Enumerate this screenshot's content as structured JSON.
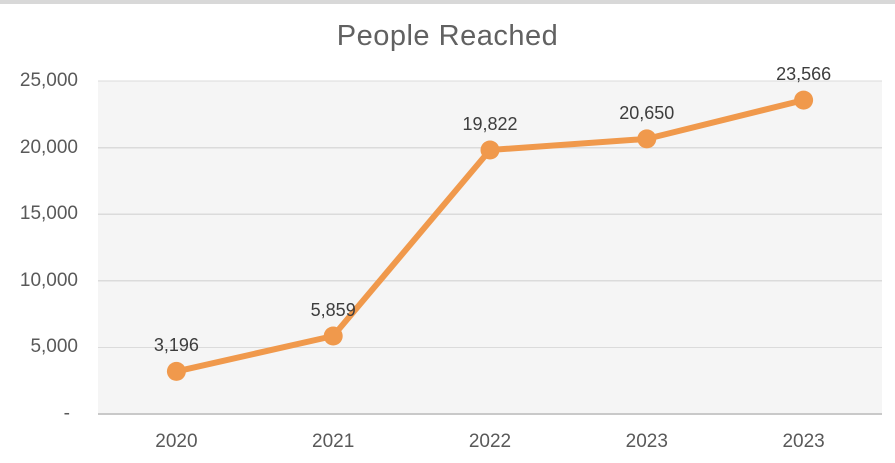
{
  "chart_data": {
    "type": "line",
    "title": "People Reached",
    "categories": [
      "2020",
      "2021",
      "2022",
      "2023",
      "2023"
    ],
    "series": [
      {
        "name": "People Reached",
        "values": [
          3196,
          5859,
          19822,
          20650,
          23566
        ]
      }
    ],
    "point_labels": [
      "3,196",
      "5,859",
      "19,822",
      "20,650",
      "23,566"
    ],
    "y_tick_labels": [
      "25,000",
      "20,000",
      "15,000",
      "10,000",
      "5,000",
      "-"
    ],
    "ylim": [
      0,
      25000
    ],
    "y_tick_interval": 5000,
    "xlabel": "",
    "ylabel": "",
    "grid": "horizontal",
    "legend_position": "none"
  },
  "colors": {
    "line": "#F0994C",
    "marker": "#F0994C",
    "plot_background": "#F5F5F5",
    "gridline": "#DBDBDB",
    "baseline": "#C9C9C9",
    "title_text": "#616161",
    "axis_text": "#595959",
    "data_label_text": "#3D3D3D",
    "top_strip": "#D8D8D8"
  }
}
